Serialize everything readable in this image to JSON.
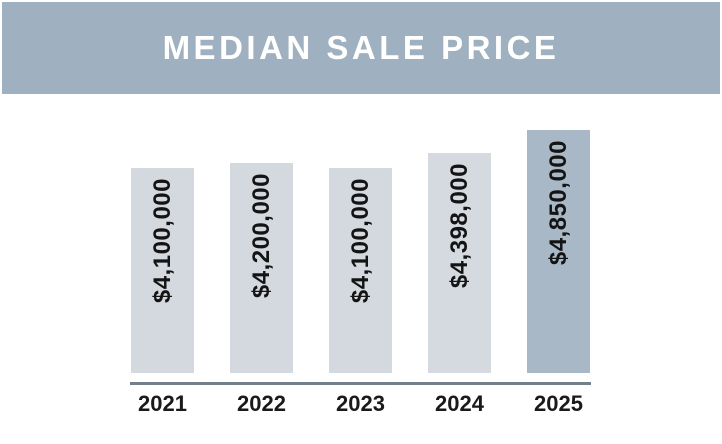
{
  "header": {
    "title": "MEDIAN SALE PRICE",
    "background_color": "#9FB0C0",
    "text_color": "#FFFFFF"
  },
  "chart_data": {
    "type": "bar",
    "title": "MEDIAN SALE PRICE",
    "categories": [
      "2021",
      "2022",
      "2023",
      "2024",
      "2025"
    ],
    "values": [
      4100000,
      4200000,
      4100000,
      4398000,
      4850000
    ],
    "value_labels": [
      "$4,100,000",
      "$4,200,000",
      "$4,100,000",
      "$4,398,000",
      "$4,850,000"
    ],
    "bar_colors": [
      "#D3D9DF",
      "#D3D9DF",
      "#D3D9DF",
      "#D4DAE0",
      "#A9B8C6"
    ],
    "highlighted_category": "2025",
    "xlabel": "",
    "ylabel": "",
    "ylim": [
      0,
      4850000
    ],
    "orientation": "vertical",
    "value_label_position": "inside-top, rotated bottom-to-top",
    "gridlines": false,
    "legend": false,
    "axis_line_color": "#72808C",
    "label_text_color": "#141414"
  }
}
